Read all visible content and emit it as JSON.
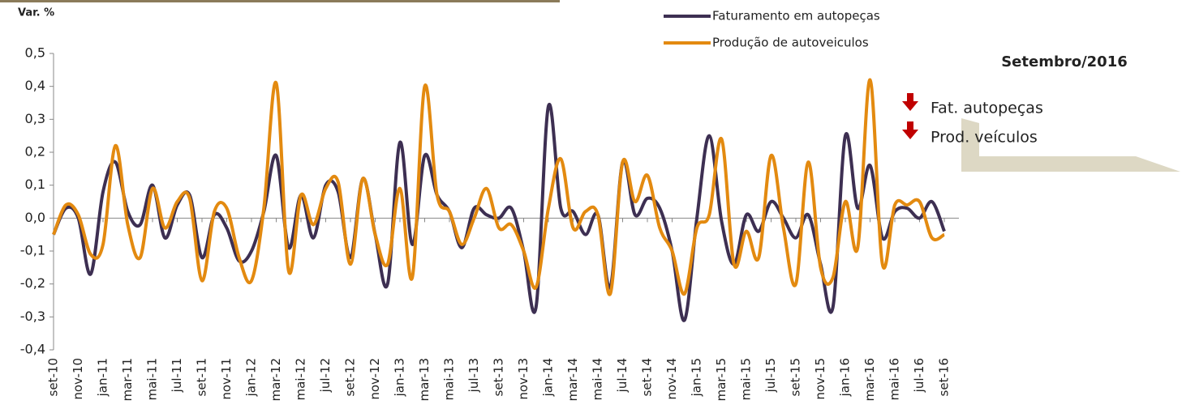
{
  "chart_data": {
    "type": "line",
    "y_label": "Var. %",
    "categories": [
      "set-10",
      null,
      "nov-10",
      null,
      "jan-11",
      null,
      "mar-11",
      null,
      "mai-11",
      null,
      "jul-11",
      null,
      "set-11",
      null,
      "nov-11",
      null,
      "jan-12",
      null,
      "mar-12",
      null,
      "mai-12",
      null,
      "jul-12",
      null,
      "set-12",
      null,
      "nov-12",
      null,
      "jan-13",
      null,
      "mar-13",
      null,
      "mai-13",
      null,
      "jul-13",
      null,
      "set-13",
      null,
      "nov-13",
      null,
      "jan-14",
      null,
      "mar-14",
      null,
      "mai-14",
      null,
      "jul-14",
      null,
      "set-14",
      null,
      "nov-14",
      null,
      "jan-15",
      null,
      "mar-15",
      null,
      "mai-15",
      null,
      "jul-15",
      null,
      "set-15",
      null,
      "nov-15",
      null,
      "jan-16",
      null,
      "mar-16",
      null,
      "mai-16",
      null,
      "jul-16",
      null,
      "set-16"
    ],
    "series": [
      {
        "name": "Faturamento em autopeças",
        "color": "#3d2f52",
        "values": [
          -0.05,
          0.03,
          0.0,
          -0.17,
          0.08,
          0.17,
          0.02,
          -0.02,
          0.1,
          -0.06,
          0.04,
          0.07,
          -0.12,
          0.01,
          -0.03,
          -0.13,
          -0.1,
          0.02,
          0.19,
          -0.09,
          0.07,
          -0.06,
          0.1,
          0.08,
          -0.12,
          0.12,
          -0.05,
          -0.2,
          0.23,
          -0.08,
          0.19,
          0.07,
          0.02,
          -0.09,
          0.03,
          0.01,
          0.0,
          0.03,
          -0.1,
          -0.27,
          0.34,
          0.03,
          0.02,
          -0.05,
          0.01,
          -0.21,
          0.17,
          0.01,
          0.06,
          0.03,
          -0.1,
          -0.31,
          0.0,
          0.25,
          -0.01,
          -0.14,
          0.01,
          -0.04,
          0.05,
          0.0,
          -0.06,
          0.01,
          -0.14,
          -0.27,
          0.25,
          0.03,
          0.16,
          -0.06,
          0.02,
          0.03,
          0.0,
          0.05,
          -0.04
        ]
      },
      {
        "name": "Produção de autoveiculos",
        "color": "#e38a10",
        "values": [
          -0.05,
          0.04,
          0.01,
          -0.11,
          -0.08,
          0.22,
          -0.02,
          -0.12,
          0.09,
          -0.03,
          0.05,
          0.06,
          -0.19,
          0.02,
          0.03,
          -0.12,
          -0.19,
          0.03,
          0.41,
          -0.16,
          0.07,
          -0.02,
          0.09,
          0.11,
          -0.14,
          0.12,
          -0.05,
          -0.14,
          0.09,
          -0.18,
          0.4,
          0.07,
          0.02,
          -0.08,
          0.0,
          0.09,
          -0.03,
          -0.02,
          -0.1,
          -0.21,
          0.03,
          0.18,
          -0.03,
          0.02,
          0.01,
          -0.23,
          0.17,
          0.05,
          0.13,
          -0.03,
          -0.1,
          -0.23,
          -0.03,
          0.01,
          0.24,
          -0.14,
          -0.04,
          -0.12,
          0.19,
          -0.03,
          -0.2,
          0.17,
          -0.15,
          -0.18,
          0.05,
          -0.09,
          0.42,
          -0.14,
          0.04,
          0.04,
          0.05,
          -0.06,
          -0.05
        ]
      }
    ],
    "ylim": [
      -0.4,
      0.5
    ],
    "yticks": [
      {
        "value": -0.4,
        "label": "-0,4"
      },
      {
        "value": -0.3,
        "label": "-0,3"
      },
      {
        "value": -0.2,
        "label": "-0,2"
      },
      {
        "value": -0.1,
        "label": "-0,1"
      },
      {
        "value": 0,
        "label": "0,0"
      },
      {
        "value": 0.1,
        "label": "0,1"
      },
      {
        "value": 0.2,
        "label": "0,2"
      },
      {
        "value": 0.3,
        "label": "0,3"
      },
      {
        "value": 0.4,
        "label": "0,4"
      },
      {
        "value": 0.5,
        "label": "0,5"
      }
    ]
  },
  "panel": {
    "title": "Setembro/2016",
    "items": [
      "Fat. autopeças",
      "Prod. veículos"
    ]
  }
}
